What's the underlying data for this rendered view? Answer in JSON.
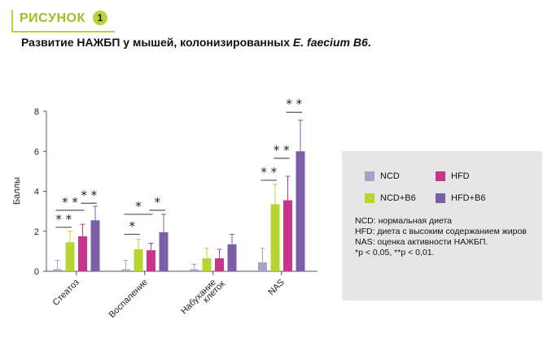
{
  "header": {
    "figure_word": "РИСУНОК",
    "figure_number": "1",
    "title_plain": "Развитие НАЖБП у мышей, колонизированных ",
    "title_italic": "E. faecium B6",
    "title_end": "."
  },
  "legend": {
    "items": [
      {
        "label": "NCD",
        "color": "#a6a3c6"
      },
      {
        "label": "HFD",
        "color": "#c8368c"
      },
      {
        "label": "NCD+B6",
        "color": "#b6d432"
      },
      {
        "label": "HFD+B6",
        "color": "#7b5ea8"
      }
    ],
    "notes": [
      "NCD: нормальная диета",
      "HFD: диета с высоким содержанием жиров",
      "NAS: оценка активности НАЖБП.",
      "*p < 0,05, **p < 0,01."
    ]
  },
  "chart_data": {
    "type": "bar",
    "ylabel": "Баллы",
    "xlabel": "",
    "ylim": [
      0,
      8
    ],
    "yticks": [
      0,
      2,
      4,
      6,
      8
    ],
    "yticklabels": [
      "0",
      "2",
      "4",
      "6",
      "8"
    ],
    "categories": [
      "Стеатоз",
      "Воспаление",
      "Набухание клеток",
      "NAS"
    ],
    "category_labels": [
      [
        "Стеатоз"
      ],
      [
        "Воспаление"
      ],
      [
        "Набухание",
        "клеток"
      ],
      [
        "NAS"
      ]
    ],
    "series": [
      {
        "name": "NCD",
        "color": "#a6a3c6",
        "values": [
          0.1,
          0.1,
          0.1,
          0.45
        ],
        "errors": [
          0.45,
          0.45,
          0.25,
          0.7
        ]
      },
      {
        "name": "NCD+B6",
        "color": "#b6d432",
        "values": [
          1.45,
          1.1,
          0.65,
          3.35
        ],
        "errors": [
          0.55,
          0.5,
          0.5,
          1.0
        ]
      },
      {
        "name": "HFD",
        "color": "#c8368c",
        "values": [
          1.75,
          1.05,
          0.65,
          3.55
        ],
        "errors": [
          0.6,
          0.35,
          0.45,
          1.2
        ]
      },
      {
        "name": "HFD+B6",
        "color": "#7b5ea8",
        "values": [
          2.55,
          1.95,
          1.35,
          6.0
        ],
        "errors": [
          0.7,
          0.9,
          0.5,
          1.55
        ]
      }
    ],
    "significance": [
      {
        "category": 0,
        "from": 0,
        "to": 1,
        "label": "* *",
        "y": 2.2
      },
      {
        "category": 0,
        "from": 0,
        "to": 2,
        "label": "* *",
        "y": 3.05
      },
      {
        "category": 0,
        "from": 2,
        "to": 3,
        "label": "* *",
        "y": 3.4
      },
      {
        "category": 1,
        "from": 0,
        "to": 1,
        "label": "*",
        "y": 1.85
      },
      {
        "category": 1,
        "from": 0,
        "to": 2,
        "label": "*",
        "y": 2.85
      },
      {
        "category": 1,
        "from": 2,
        "to": 3,
        "label": "*",
        "y": 3.05
      },
      {
        "category": 3,
        "from": 0,
        "to": 1,
        "label": "* *",
        "y": 4.55
      },
      {
        "category": 3,
        "from": 1,
        "to": 2,
        "label": "* *",
        "y": 5.65
      },
      {
        "category": 3,
        "from": 2,
        "to": 3,
        "label": "* *",
        "y": 7.95
      }
    ]
  }
}
